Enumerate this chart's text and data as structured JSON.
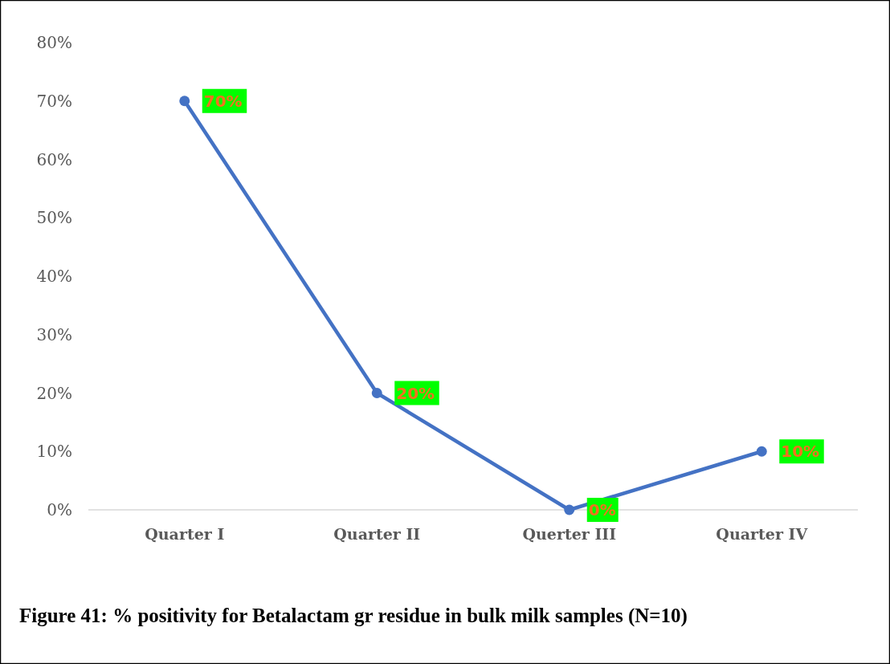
{
  "chart_data": {
    "type": "line",
    "title": "Figure 41: % positivity for Betalactam gr residue in bulk milk samples (N=10)",
    "categories": [
      "Quarter I",
      "Quarter II",
      "Querter III",
      "Quarter IV"
    ],
    "values": [
      70,
      20,
      0,
      10
    ],
    "color": "#4472c4",
    "marker": "circle",
    "value_labels": [
      "70%",
      "20%",
      "0%",
      "10%"
    ],
    "ylim": [
      0,
      80
    ],
    "yticks": [
      {
        "value": 0,
        "label": "0%"
      },
      {
        "value": 10,
        "label": "10%"
      },
      {
        "value": 20,
        "label": "20%"
      },
      {
        "value": 30,
        "label": "30%"
      },
      {
        "value": 40,
        "label": "40%"
      },
      {
        "value": 50,
        "label": "50%"
      },
      {
        "value": 60,
        "label": "60%"
      },
      {
        "value": 70,
        "label": "70%"
      },
      {
        "value": 80,
        "label": "80%"
      }
    ],
    "grid": false
  }
}
